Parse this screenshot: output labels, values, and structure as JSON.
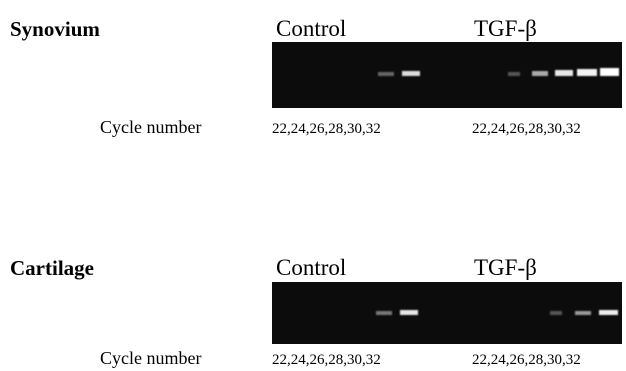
{
  "panels": [
    {
      "title": "Synovium",
      "cycle_label": "Cycle number",
      "groups": [
        {
          "label": "Control",
          "lanes": "22,24,26,28,30,32"
        },
        {
          "label": "TGF-β",
          "lanes": "22,24,26,28,30,32"
        }
      ]
    },
    {
      "title": "Cartilage",
      "cycle_label": "Cycle number",
      "groups": [
        {
          "label": "Control",
          "lanes": "22,24,26,28,30,32"
        },
        {
          "label": "TGF-β",
          "lanes": "22,24,26,28,30,32"
        }
      ]
    }
  ]
}
